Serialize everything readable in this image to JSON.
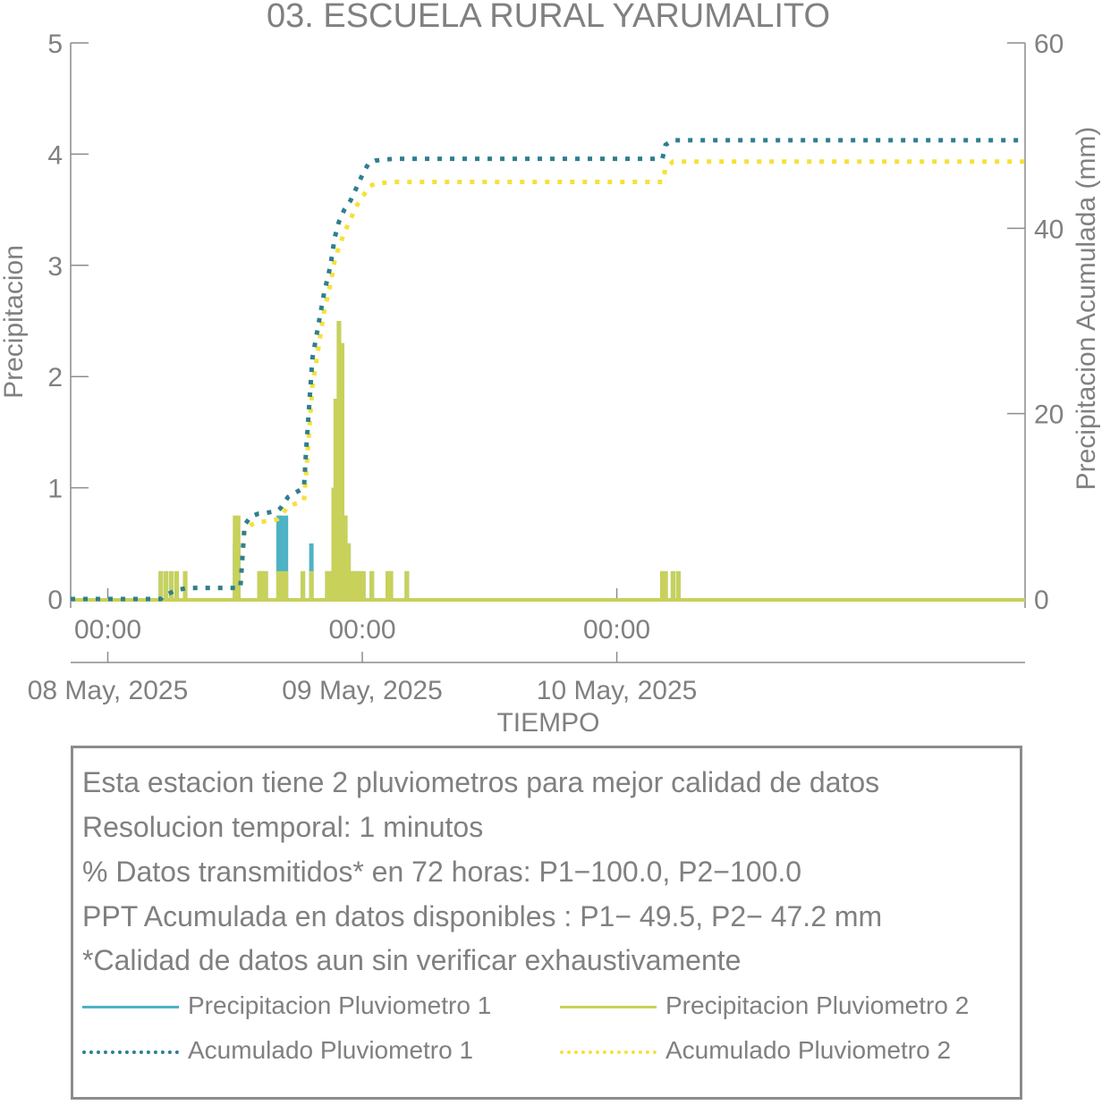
{
  "chart_data": {
    "type": "line",
    "title": "03. ESCUELA RURAL YARUMALITO",
    "xlabel": "TIEMPO",
    "ylabel": "Precipitacion",
    "ylabel_right": "Precipitacion Acumulada (mm)",
    "ylim": [
      0,
      5
    ],
    "ylim_right": [
      0,
      60
    ],
    "yticks": [
      "0",
      "1",
      "2",
      "3",
      "4",
      "5"
    ],
    "yticks_right": [
      "0",
      "20",
      "40",
      "60"
    ],
    "xlim_hours": [
      -3.5,
      86.5
    ],
    "xticks": [
      {
        "time": "00:00",
        "date": "08 May, 2025",
        "hour": 0
      },
      {
        "time": "00:00",
        "date": "09 May, 2025",
        "hour": 24
      },
      {
        "time": "00:00",
        "date": "10 May, 2025",
        "hour": 48
      }
    ],
    "colors": {
      "p1": "#4db3c4",
      "p2": "#c8d15a",
      "a1": "#2f7f8f",
      "a2": "#f5e13a"
    },
    "series": [
      {
        "name": "Precipitacion Pluviometro 1",
        "axis": "left",
        "style": "bars",
        "x_hours": [
          5.0,
          5.5,
          6.0,
          6.5,
          7.3,
          12.0,
          12.3,
          14.3,
          14.6,
          14.9,
          16.1,
          16.4,
          16.8,
          18.4,
          19.2,
          20.7,
          21.1,
          21.3,
          21.5,
          21.8,
          22.1,
          22.4,
          22.7,
          23.0,
          23.3,
          23.7,
          24.1,
          24.9,
          26.4,
          26.7,
          28.2,
          52.3,
          52.6,
          53.3,
          53.8
        ],
        "values": [
          0.25,
          0.25,
          0.25,
          0.25,
          0.25,
          0.5,
          0.5,
          0.25,
          0.25,
          0.25,
          0.75,
          0.75,
          0.75,
          0.25,
          0.5,
          0.25,
          0.25,
          1.0,
          1.8,
          2.5,
          2.3,
          0.75,
          0.5,
          0.25,
          0.25,
          0.25,
          0.25,
          0.25,
          0.25,
          0.25,
          0.25,
          0.25,
          0.25,
          0.25,
          0.25
        ]
      },
      {
        "name": "Precipitacion Pluviometro 2",
        "axis": "left",
        "style": "bars",
        "x_hours": [
          5.0,
          5.5,
          6.0,
          6.5,
          7.3,
          12.0,
          12.3,
          14.3,
          14.6,
          14.9,
          16.1,
          16.4,
          16.8,
          18.4,
          19.2,
          20.7,
          21.1,
          21.3,
          21.5,
          21.8,
          22.1,
          22.4,
          22.7,
          23.0,
          23.3,
          23.7,
          24.1,
          24.9,
          26.4,
          26.7,
          28.2,
          52.3,
          52.6,
          53.3,
          53.8
        ],
        "values": [
          0.25,
          0.25,
          0.25,
          0.25,
          0.25,
          0.75,
          0.75,
          0.25,
          0.25,
          0.25,
          0.25,
          0.25,
          0.25,
          0.25,
          0.25,
          0.25,
          0.25,
          1.0,
          1.8,
          2.5,
          2.3,
          0.75,
          0.5,
          0.25,
          0.25,
          0.25,
          0.25,
          0.25,
          0.25,
          0.25,
          0.25,
          0.25,
          0.25,
          0.25,
          0.25
        ]
      },
      {
        "name": "Acumulado Pluviometro 1",
        "axis": "right",
        "style": "dotted",
        "x_hours": [
          -3.5,
          5.0,
          5.2,
          5.8,
          6.3,
          7.5,
          12.5,
          12.9,
          13.5,
          14.2,
          15.0,
          16.0,
          16.3,
          17.0,
          18.5,
          18.7,
          19.3,
          20.4,
          21.0,
          21.4,
          21.8,
          22.3,
          22.9,
          23.5,
          24.1,
          24.6,
          25.2,
          26.0,
          27.0,
          28.5,
          30.0,
          52.3,
          52.6,
          53.3,
          54.0,
          86.5
        ],
        "values": [
          0,
          0,
          0.3,
          0.6,
          0.9,
          1.2,
          1.2,
          8.0,
          8.9,
          9.2,
          9.3,
          9.5,
          9.8,
          11.0,
          12.0,
          16.0,
          26.0,
          33.0,
          36.0,
          39.0,
          40.7,
          42.0,
          43.0,
          44.5,
          46.0,
          47.0,
          47.3,
          47.4,
          47.5,
          47.5,
          47.5,
          47.5,
          49.0,
          49.5,
          49.5,
          49.5
        ]
      },
      {
        "name": "Acumulado Pluviometro 2",
        "axis": "right",
        "style": "dotted",
        "x_hours": [
          -3.5,
          5.0,
          5.2,
          5.8,
          6.3,
          7.5,
          12.5,
          12.9,
          13.5,
          14.2,
          15.0,
          16.0,
          16.3,
          17.0,
          18.5,
          18.7,
          19.3,
          20.4,
          21.0,
          21.4,
          21.8,
          22.3,
          22.9,
          23.5,
          24.1,
          24.6,
          25.2,
          26.0,
          27.0,
          28.5,
          30.0,
          52.3,
          52.6,
          53.3,
          54.0,
          86.5
        ],
        "values": [
          0,
          0,
          0.3,
          0.6,
          0.9,
          1.2,
          1.2,
          7.5,
          8.0,
          8.3,
          8.4,
          8.6,
          8.9,
          10.0,
          10.6,
          13.5,
          23.0,
          31.0,
          34.0,
          36.5,
          38.0,
          39.5,
          41.0,
          42.5,
          43.5,
          44.5,
          44.8,
          44.9,
          45.0,
          45.0,
          45.0,
          45.0,
          46.5,
          47.2,
          47.2,
          47.2
        ]
      }
    ],
    "grid": false,
    "legend_position": "bottom"
  },
  "info": {
    "line1": "Esta estacion tiene 2 pluviometros para mejor calidad de datos",
    "line2": "Resolucion temporal: 1 minutos",
    "line3": "% Datos transmitidos* en 72 horas: P1−100.0, P2−100.0",
    "line4": "PPT Acumulada en datos disponibles : P1− 49.5, P2− 47.2 mm",
    "line5": "*Calidad de datos aun sin verificar exhaustivamente"
  },
  "legend": [
    {
      "label": "Precipitacion Pluviometro 1",
      "color": "#4db3c4",
      "style": "solid"
    },
    {
      "label": "Precipitacion Pluviometro 2",
      "color": "#c8d15a",
      "style": "solid"
    },
    {
      "label": "Acumulado Pluviometro 1",
      "color": "#2f7f8f",
      "style": "dotted"
    },
    {
      "label": "Acumulado Pluviometro 2",
      "color": "#f5e13a",
      "style": "dotted"
    }
  ]
}
